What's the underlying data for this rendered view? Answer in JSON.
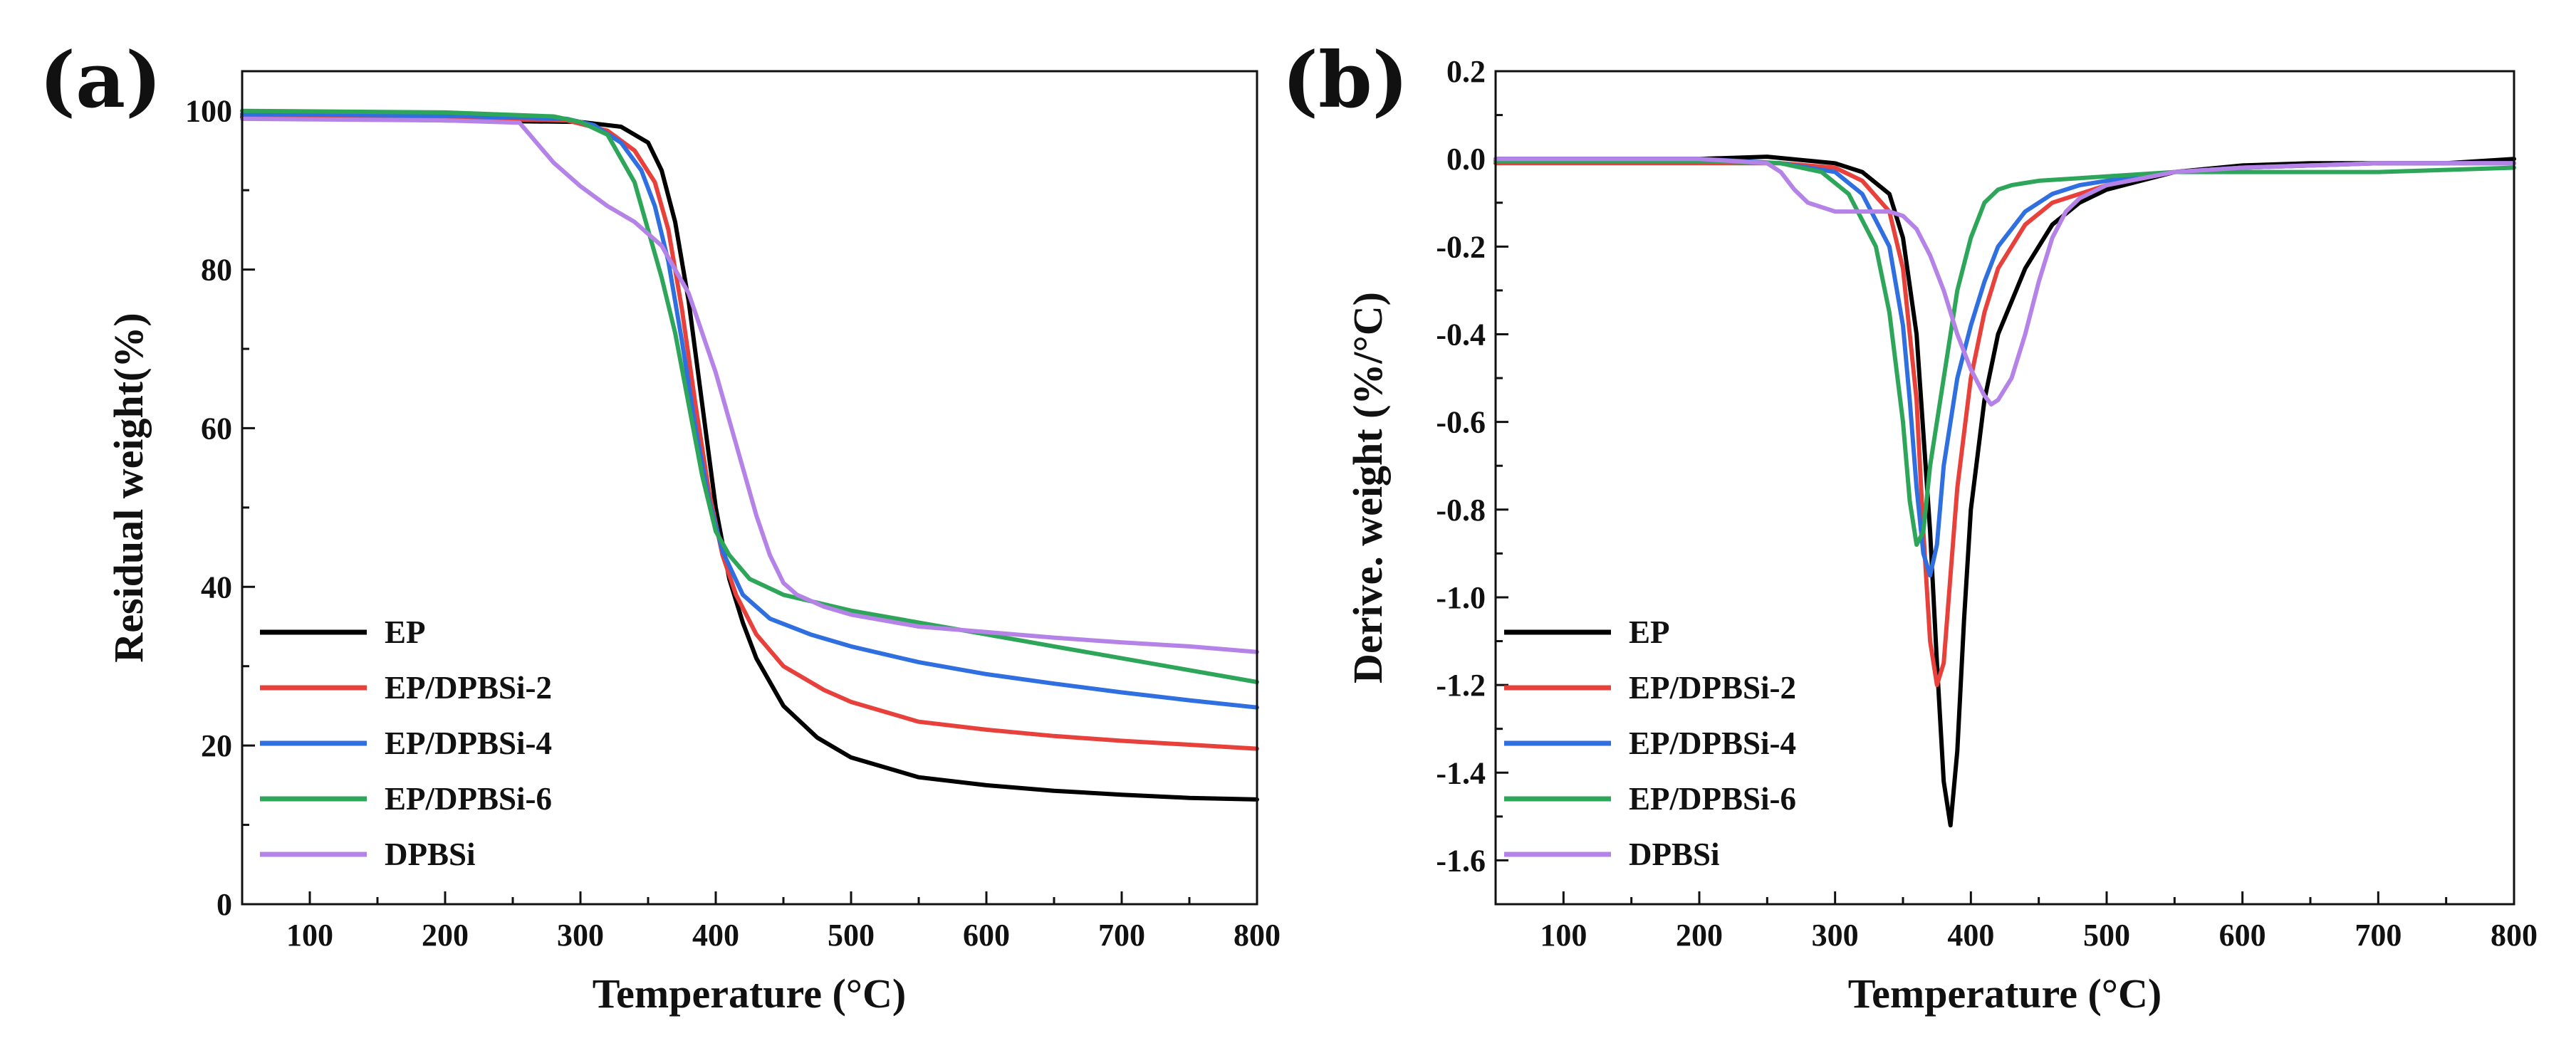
{
  "chart_data": [
    {
      "panel": "(a)",
      "type": "line",
      "xlabel": "Temperature (°C)",
      "ylabel": "Residual weight(%)",
      "xlim": [
        50,
        800
      ],
      "ylim": [
        0,
        105
      ],
      "xticks": [
        100,
        200,
        300,
        400,
        500,
        600,
        700,
        800
      ],
      "yticks": [
        0,
        20,
        40,
        60,
        80,
        100
      ],
      "legend_position": "bottom-left",
      "series": [
        {
          "name": "EP",
          "color": "#000000",
          "x": [
            50,
            200,
            300,
            330,
            350,
            360,
            370,
            380,
            390,
            400,
            410,
            420,
            430,
            450,
            475,
            500,
            550,
            600,
            650,
            700,
            750,
            800
          ],
          "y": [
            99.2,
            98.8,
            98.6,
            98.0,
            96.0,
            92.5,
            86.0,
            76.0,
            63.0,
            50.0,
            41.0,
            35.5,
            31.0,
            25.0,
            21.0,
            18.5,
            16.0,
            15.0,
            14.3,
            13.8,
            13.4,
            13.2
          ]
        },
        {
          "name": "EP/DPBSi-2",
          "color": "#e8413c",
          "x": [
            50,
            200,
            290,
            320,
            340,
            355,
            365,
            375,
            385,
            395,
            405,
            415,
            430,
            450,
            480,
            500,
            550,
            600,
            650,
            700,
            750,
            800
          ],
          "y": [
            99.4,
            99.1,
            98.8,
            97.5,
            95.0,
            91.0,
            85.0,
            75.0,
            63.0,
            52.0,
            44.0,
            39.0,
            34.0,
            30.0,
            27.0,
            25.5,
            23.0,
            22.0,
            21.2,
            20.6,
            20.1,
            19.6
          ]
        },
        {
          "name": "EP/DPBSi-4",
          "color": "#2f6fe0",
          "x": [
            50,
            200,
            290,
            310,
            330,
            345,
            355,
            365,
            375,
            385,
            395,
            405,
            420,
            440,
            470,
            500,
            550,
            600,
            650,
            700,
            750,
            800
          ],
          "y": [
            99.6,
            99.4,
            99.0,
            98.2,
            96.0,
            92.5,
            88.0,
            81.0,
            71.0,
            60.0,
            51.0,
            44.5,
            39.0,
            36.0,
            34.0,
            32.5,
            30.5,
            29.0,
            27.8,
            26.7,
            25.7,
            24.8
          ]
        },
        {
          "name": "EP/DPBSi-6",
          "color": "#2ea65a",
          "x": [
            50,
            200,
            280,
            300,
            320,
            340,
            350,
            360,
            370,
            380,
            390,
            400,
            410,
            425,
            450,
            500,
            550,
            600,
            650,
            700,
            750,
            800
          ],
          "y": [
            100.0,
            99.8,
            99.3,
            98.6,
            97.0,
            91.0,
            85.0,
            79.0,
            72.0,
            63.0,
            54.0,
            47.0,
            44.0,
            41.0,
            39.0,
            37.0,
            35.5,
            34.0,
            32.5,
            31.0,
            29.5,
            28.0
          ]
        },
        {
          "name": "DPBSi",
          "color": "#b583e8",
          "x": [
            50,
            200,
            255,
            265,
            280,
            300,
            320,
            340,
            360,
            380,
            390,
            400,
            410,
            420,
            430,
            440,
            450,
            460,
            480,
            500,
            550,
            600,
            650,
            700,
            750,
            800
          ],
          "y": [
            99.0,
            98.8,
            98.5,
            96.5,
            93.5,
            90.5,
            88.0,
            86.0,
            83.0,
            77.0,
            72.0,
            67.0,
            61.0,
            55.0,
            49.0,
            44.0,
            40.5,
            39.0,
            37.5,
            36.5,
            35.0,
            34.3,
            33.6,
            33.0,
            32.5,
            31.8
          ]
        }
      ]
    },
    {
      "panel": "(b)",
      "type": "line",
      "xlabel": "Temperature (°C)",
      "ylabel": "Derive. weight (%/°C)",
      "xlim": [
        50,
        800
      ],
      "ylim": [
        -1.7,
        0.2
      ],
      "xticks": [
        100,
        200,
        300,
        400,
        500,
        600,
        700,
        800
      ],
      "yticks": [
        0.2,
        0.0,
        -0.2,
        -0.4,
        -0.6,
        -0.8,
        -1.0,
        -1.2,
        -1.4,
        -1.6
      ],
      "ytick_labels": [
        "0.2",
        "0.0",
        "-0.2",
        "-0.4",
        "-0.6",
        "-0.8",
        "-1.0",
        "-1.2",
        "-1.4",
        "-1.6"
      ],
      "legend_position": "bottom-left",
      "series": [
        {
          "name": "EP",
          "color": "#000000",
          "x": [
            50,
            200,
            250,
            300,
            320,
            340,
            350,
            360,
            370,
            375,
            380,
            385,
            390,
            395,
            400,
            410,
            420,
            440,
            460,
            480,
            500,
            550,
            600,
            650,
            700,
            750,
            800
          ],
          "y": [
            0.0,
            0.0,
            0.005,
            -0.01,
            -0.03,
            -0.08,
            -0.18,
            -0.4,
            -0.85,
            -1.15,
            -1.42,
            -1.52,
            -1.35,
            -1.05,
            -0.8,
            -0.55,
            -0.4,
            -0.25,
            -0.15,
            -0.1,
            -0.07,
            -0.03,
            -0.015,
            -0.01,
            -0.01,
            -0.01,
            0.0
          ]
        },
        {
          "name": "EP/DPBSi-2",
          "color": "#e8413c",
          "x": [
            50,
            200,
            260,
            300,
            320,
            340,
            350,
            360,
            365,
            370,
            375,
            380,
            385,
            390,
            400,
            410,
            420,
            440,
            460,
            480,
            500,
            550,
            600,
            650,
            700,
            750,
            800
          ],
          "y": [
            -0.01,
            -0.01,
            -0.01,
            -0.02,
            -0.05,
            -0.12,
            -0.25,
            -0.55,
            -0.85,
            -1.1,
            -1.2,
            -1.15,
            -0.95,
            -0.75,
            -0.5,
            -0.35,
            -0.25,
            -0.15,
            -0.1,
            -0.08,
            -0.06,
            -0.03,
            -0.02,
            -0.015,
            -0.01,
            -0.01,
            -0.01
          ]
        },
        {
          "name": "EP/DPBSi-4",
          "color": "#2f6fe0",
          "x": [
            50,
            200,
            260,
            300,
            320,
            340,
            350,
            355,
            360,
            365,
            370,
            375,
            380,
            390,
            400,
            410,
            420,
            440,
            460,
            480,
            500,
            550,
            600,
            650,
            700,
            750,
            800
          ],
          "y": [
            0.0,
            0.0,
            -0.01,
            -0.03,
            -0.08,
            -0.2,
            -0.38,
            -0.55,
            -0.75,
            -0.9,
            -0.95,
            -0.88,
            -0.7,
            -0.5,
            -0.38,
            -0.28,
            -0.2,
            -0.12,
            -0.08,
            -0.06,
            -0.05,
            -0.03,
            -0.02,
            -0.015,
            -0.01,
            -0.01,
            -0.01
          ]
        },
        {
          "name": "EP/DPBSi-6",
          "color": "#2ea65a",
          "x": [
            50,
            200,
            260,
            290,
            310,
            330,
            340,
            350,
            355,
            360,
            365,
            370,
            380,
            390,
            400,
            410,
            420,
            430,
            440,
            450,
            500,
            550,
            600,
            650,
            700,
            750,
            800
          ],
          "y": [
            -0.005,
            -0.005,
            -0.01,
            -0.03,
            -0.08,
            -0.2,
            -0.35,
            -0.6,
            -0.78,
            -0.88,
            -0.85,
            -0.7,
            -0.5,
            -0.3,
            -0.18,
            -0.1,
            -0.07,
            -0.06,
            -0.055,
            -0.05,
            -0.04,
            -0.03,
            -0.03,
            -0.03,
            -0.03,
            -0.025,
            -0.02
          ]
        },
        {
          "name": "DPBSi",
          "color": "#b583e8",
          "x": [
            50,
            200,
            250,
            260,
            270,
            280,
            300,
            320,
            340,
            350,
            360,
            370,
            380,
            390,
            400,
            410,
            415,
            420,
            430,
            440,
            450,
            460,
            470,
            480,
            500,
            550,
            600,
            650,
            700,
            750,
            800
          ],
          "y": [
            0.0,
            0.0,
            -0.01,
            -0.03,
            -0.07,
            -0.1,
            -0.12,
            -0.12,
            -0.12,
            -0.13,
            -0.16,
            -0.22,
            -0.3,
            -0.4,
            -0.48,
            -0.54,
            -0.56,
            -0.55,
            -0.5,
            -0.4,
            -0.28,
            -0.18,
            -0.12,
            -0.09,
            -0.06,
            -0.03,
            -0.02,
            -0.015,
            -0.01,
            -0.01,
            -0.01
          ]
        }
      ]
    }
  ]
}
